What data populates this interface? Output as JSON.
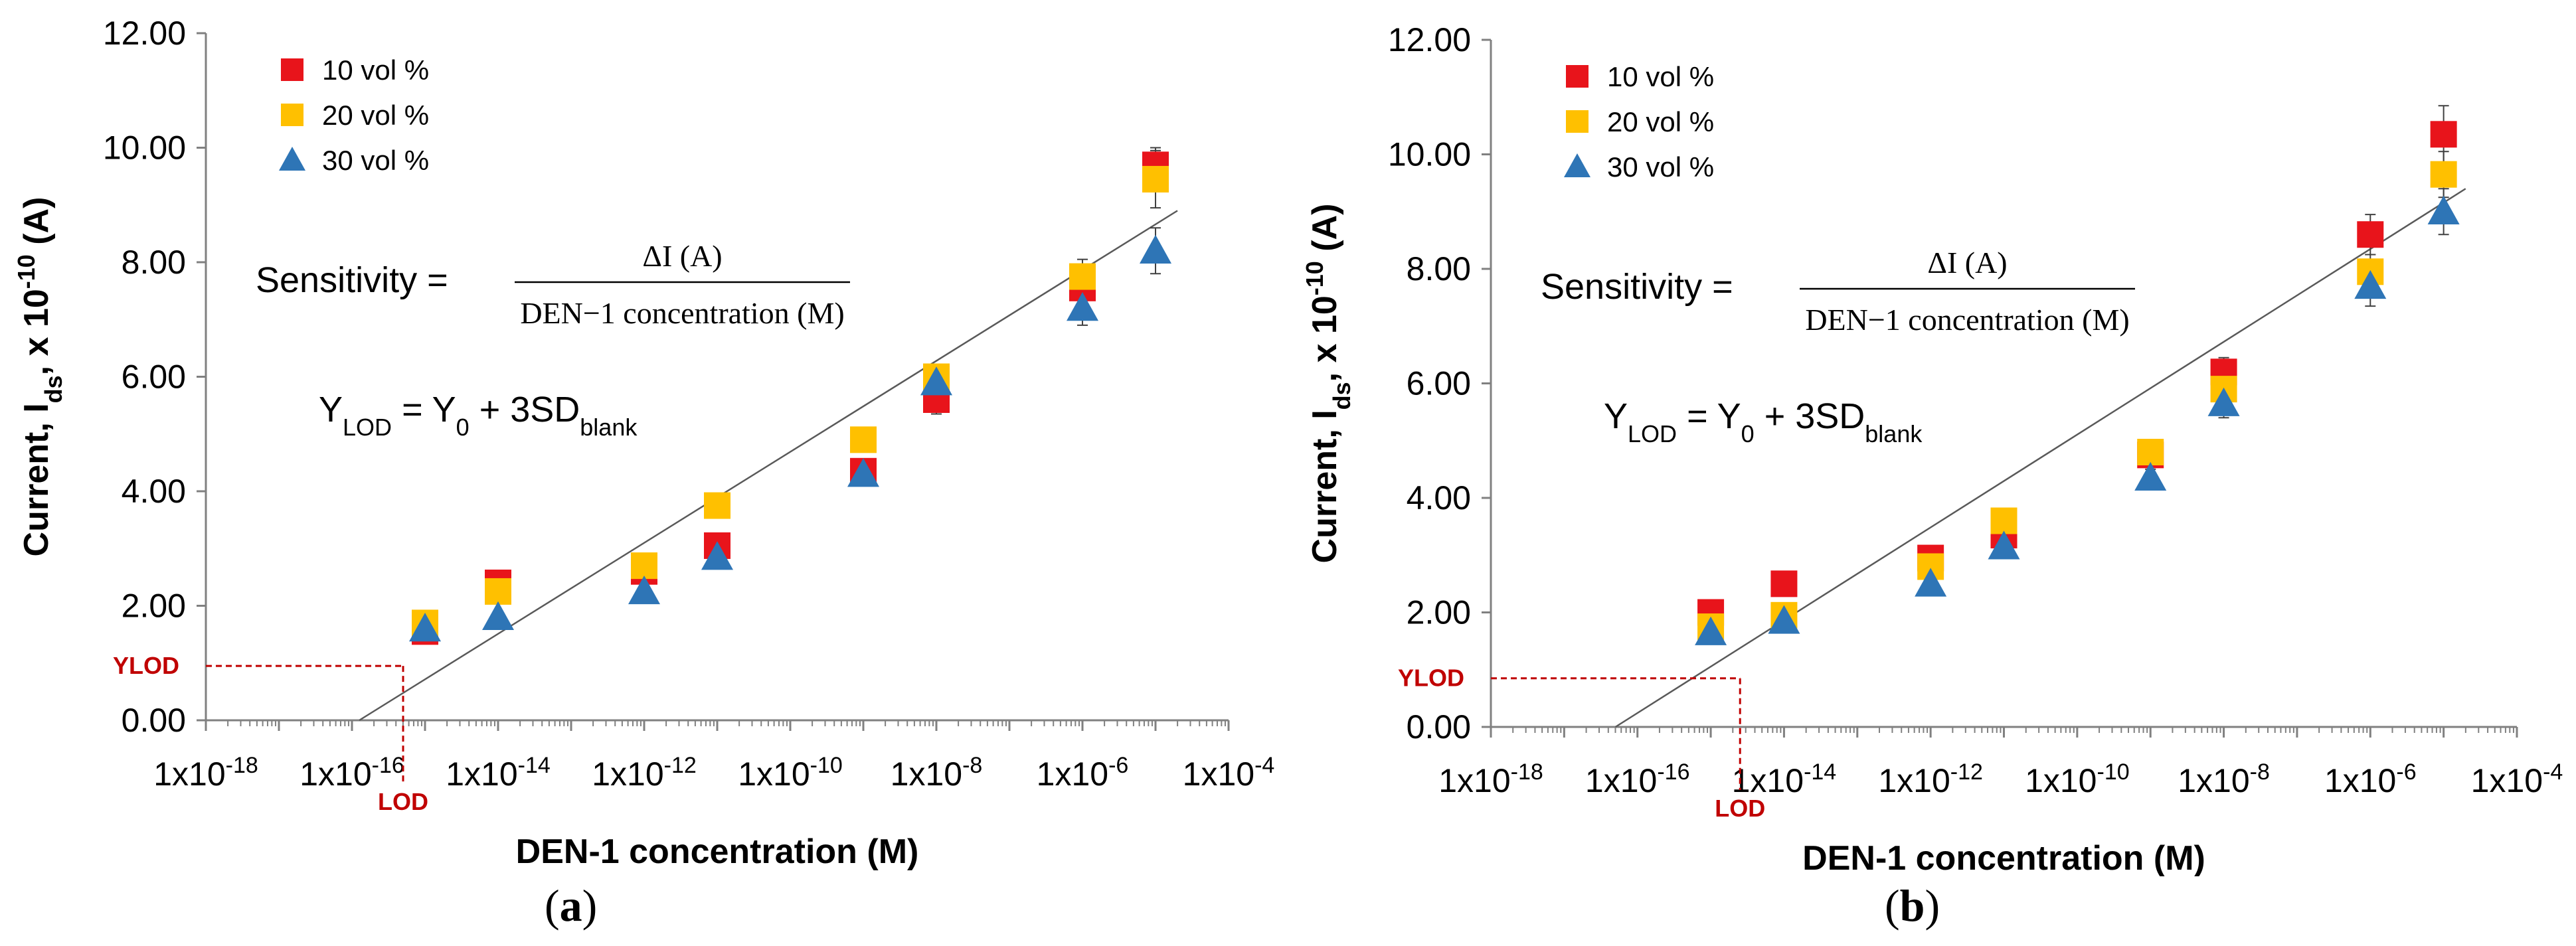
{
  "colors": {
    "s10": "#e8141b",
    "s20": "#ffc000",
    "s30": "#2e75b6",
    "lod": "#c00000",
    "axis": "#808080",
    "fit": "#595959"
  },
  "chart_data": [
    {
      "panel": "a",
      "type": "scatter",
      "title": "",
      "xlabel": "DEN-1 concentration (M)",
      "ylabel_parts": {
        "main": "Current, I",
        "sub": "ds",
        "mid": ", x 10",
        "sup": "-10",
        "end": " (A)"
      },
      "x_scale": "log",
      "xlim_exponents": [
        -18,
        -4
      ],
      "xtick_exponents": [
        -18,
        -16,
        -14,
        -12,
        -10,
        -8,
        -6,
        -4
      ],
      "xtick_base": "1x10",
      "ylim": [
        0,
        12
      ],
      "yticks": [
        0,
        2,
        4,
        6,
        8,
        10,
        12
      ],
      "ytick_labels": [
        "0.00",
        "2.00",
        "4.00",
        "6.00",
        "8.00",
        "10.00",
        "12.00"
      ],
      "legend_position": "top-left",
      "series": [
        {
          "name": "10 vol %",
          "marker": "square",
          "color_key": "s10",
          "x_exponents": [
            -15,
            -14,
            -12,
            -11,
            -9,
            -8,
            -6,
            -5
          ],
          "y": [
            1.55,
            2.4,
            2.6,
            3.05,
            4.35,
            5.6,
            7.55,
            9.7
          ],
          "err": [
            0.1,
            0.15,
            0.12,
            0.15,
            0.12,
            0.25,
            0.2,
            0.3
          ]
        },
        {
          "name": "20 vol %",
          "marker": "square",
          "color_key": "s20",
          "x_exponents": [
            -15,
            -14,
            -12,
            -11,
            -9,
            -8,
            -6,
            -5
          ],
          "y": [
            1.7,
            2.25,
            2.7,
            3.75,
            4.9,
            6.0,
            7.75,
            9.45
          ],
          "err": [
            0.1,
            0.12,
            0.12,
            0.15,
            0.2,
            0.2,
            0.3,
            0.5
          ]
        },
        {
          "name": "30 vol %",
          "marker": "triangle",
          "color_key": "s30",
          "x_exponents": [
            -15,
            -14,
            -12,
            -11,
            -9,
            -8,
            -6,
            -5
          ],
          "y": [
            1.6,
            1.8,
            2.25,
            2.85,
            4.3,
            5.9,
            7.2,
            8.2
          ],
          "err": [
            0.08,
            0.1,
            0.1,
            0.1,
            0.15,
            0.15,
            0.3,
            0.4
          ]
        }
      ],
      "fit_line_exponents": [
        -15.9,
        -4.7
      ],
      "fit_line_y": [
        0,
        8.9
      ],
      "lod": {
        "ylod": 0.95,
        "x_exponent": -15.3,
        "ylod_label": "YLOD",
        "lod_label": "LOD"
      },
      "annotation": {
        "sensitivity_label": "Sensitivity = ",
        "numerator": "ΔI (A)",
        "denominator": "DEN−1 concentration (M)",
        "ylod_parts": {
          "y": "Y",
          "sub": "LOD",
          "eq": " = Y",
          "zero": "0",
          "plus": " + 3SD",
          "blank": "blank"
        }
      }
    },
    {
      "panel": "b",
      "type": "scatter",
      "title": "",
      "xlabel": "DEN-1 concentration (M)",
      "ylabel_parts": {
        "main": "Current, I",
        "sub": "ds",
        "mid": ", x 10",
        "sup": "-10",
        "end": " (A)"
      },
      "x_scale": "log",
      "xlim_exponents": [
        -18,
        -4
      ],
      "xtick_exponents": [
        -18,
        -16,
        -14,
        -12,
        -10,
        -8,
        -6,
        -4
      ],
      "xtick_base": "1x10",
      "ylim": [
        0,
        12
      ],
      "yticks": [
        0,
        2,
        4,
        6,
        8,
        10,
        12
      ],
      "ytick_labels": [
        "0.00",
        "2.00",
        "4.00",
        "6.00",
        "8.00",
        "10.00",
        "12.00"
      ],
      "legend_position": "top-left",
      "series": [
        {
          "name": "10 vol %",
          "marker": "square",
          "color_key": "s10",
          "x_exponents": [
            -15,
            -14,
            -12,
            -11,
            -9,
            -8,
            -6,
            -5
          ],
          "y": [
            2.0,
            2.5,
            2.95,
            3.35,
            4.75,
            6.2,
            8.6,
            10.35
          ],
          "err": [
            0.1,
            0.1,
            0.1,
            0.15,
            0.2,
            0.25,
            0.35,
            0.5
          ]
        },
        {
          "name": "20 vol %",
          "marker": "square",
          "color_key": "s20",
          "x_exponents": [
            -15,
            -14,
            -12,
            -11,
            -9,
            -8,
            -6,
            -5
          ],
          "y": [
            1.75,
            1.95,
            2.8,
            3.6,
            4.8,
            5.9,
            7.95,
            9.65
          ],
          "err": [
            0.1,
            0.1,
            0.12,
            0.15,
            0.2,
            0.25,
            0.3,
            0.4
          ]
        },
        {
          "name": "30 vol %",
          "marker": "triangle",
          "color_key": "s30",
          "x_exponents": [
            -15,
            -14,
            -12,
            -11,
            -9,
            -8,
            -6,
            -5
          ],
          "y": [
            1.65,
            1.85,
            2.5,
            3.15,
            4.35,
            5.65,
            7.7,
            9.0
          ],
          "err": [
            0.08,
            0.1,
            0.1,
            0.12,
            0.15,
            0.25,
            0.35,
            0.4
          ]
        }
      ],
      "fit_line_exponents": [
        -16.3,
        -4.7
      ],
      "fit_line_y": [
        0,
        9.4
      ],
      "lod": {
        "ylod": 0.85,
        "x_exponent": -14.6,
        "ylod_label": "YLOD",
        "lod_label": "LOD"
      },
      "annotation": {
        "sensitivity_label": "Sensitivity = ",
        "numerator": "ΔI (A)",
        "denominator": "DEN−1 concentration (M)",
        "ylod_parts": {
          "y": "Y",
          "sub": "LOD",
          "eq": " = Y",
          "zero": "0",
          "plus": " + 3SD",
          "blank": "blank"
        }
      }
    }
  ],
  "captions": [
    {
      "open": "(",
      "letter": "a",
      "close": ")"
    },
    {
      "open": "(",
      "letter": "b",
      "close": ")"
    }
  ]
}
